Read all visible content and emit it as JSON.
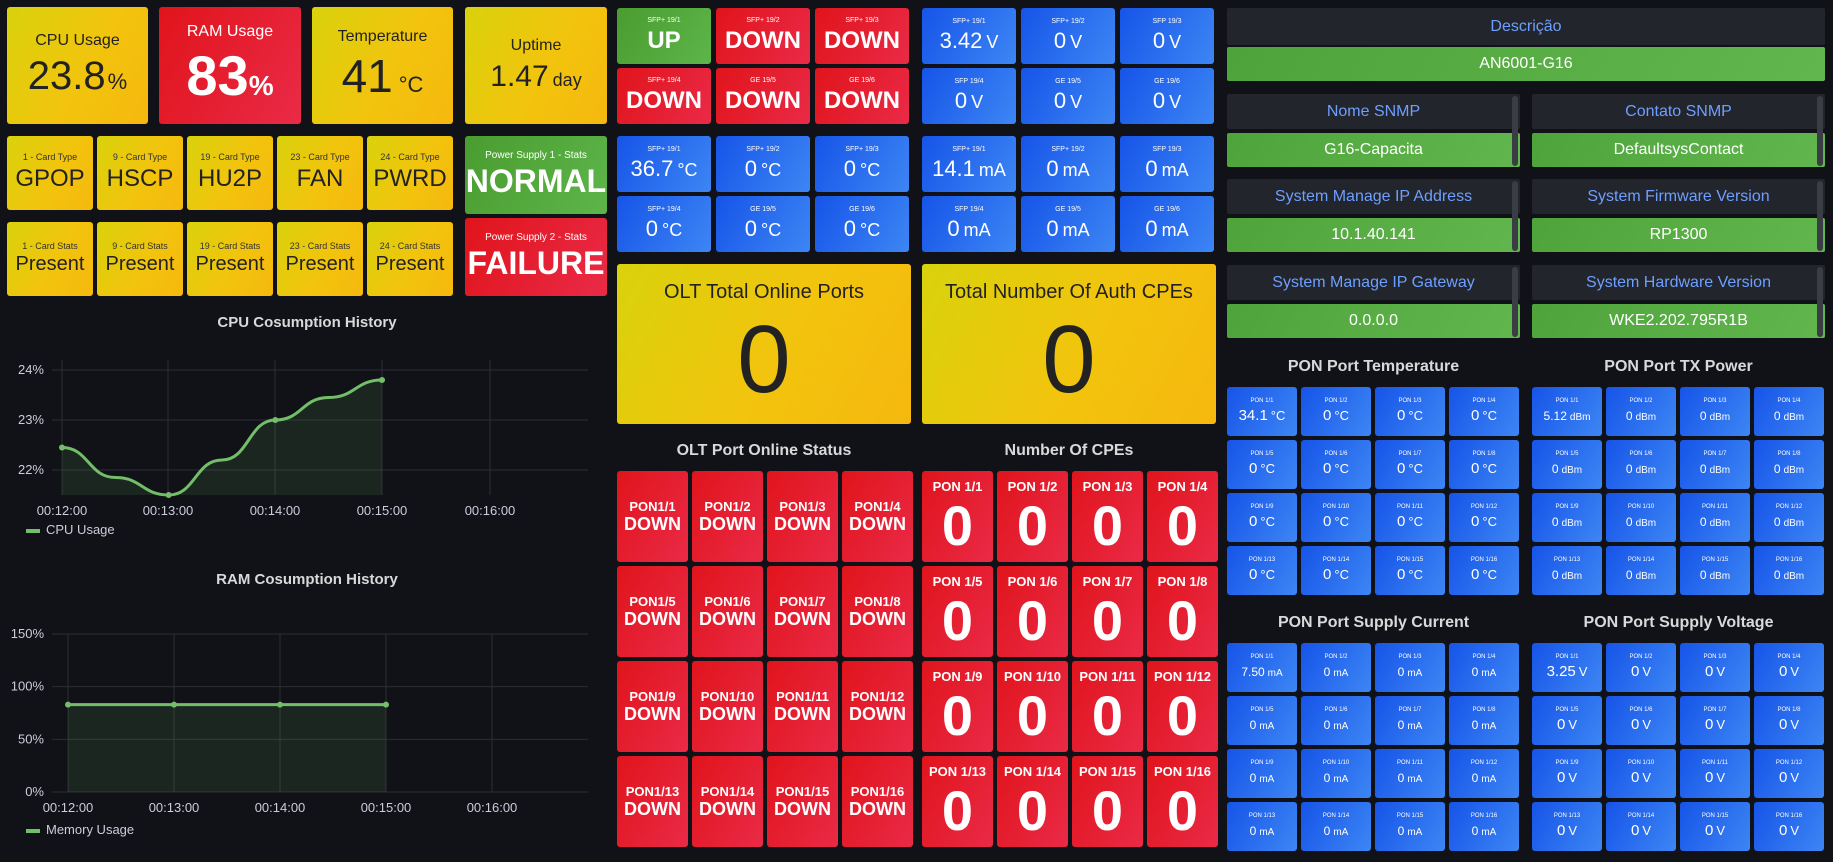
{
  "stats": {
    "cpu": {
      "title": "CPU Usage",
      "value": "23.8",
      "unit": "%"
    },
    "ram": {
      "title": "RAM Usage",
      "value": "83",
      "unit": "%"
    },
    "temp": {
      "title": "Temperature",
      "value": "41",
      "unit": "°C"
    },
    "uptime": {
      "title": "Uptime",
      "value": "1.47",
      "unit": "day"
    }
  },
  "card_types": [
    {
      "title": "1 - Card Type",
      "value": "GPOP"
    },
    {
      "title": "9 - Card Type",
      "value": "HSCP"
    },
    {
      "title": "19 - Card Type",
      "value": "HU2P"
    },
    {
      "title": "23 - Card Type",
      "value": "FAN"
    },
    {
      "title": "24 - Card Type",
      "value": "PWRD"
    }
  ],
  "card_stats": [
    {
      "title": "1 - Card Stats",
      "value": "Present"
    },
    {
      "title": "9 - Card Stats",
      "value": "Present"
    },
    {
      "title": "19 - Card Stats",
      "value": "Present"
    },
    {
      "title": "23 - Card Stats",
      "value": "Present"
    },
    {
      "title": "24 - Card Stats",
      "value": "Present"
    }
  ],
  "psu": [
    {
      "title": "Power Supply 1 - Stats",
      "value": "NORMAL"
    },
    {
      "title": "Power Supply 2 - Stats",
      "value": "FAILURE"
    }
  ],
  "sfp_status": [
    {
      "title": "SFP+ 19/1",
      "value": "UP",
      "state": "g"
    },
    {
      "title": "SFP+ 19/2",
      "value": "DOWN",
      "state": "r"
    },
    {
      "title": "SFP+ 19/3",
      "value": "DOWN",
      "state": "r"
    },
    {
      "title": "SFP+ 19/4",
      "value": "DOWN",
      "state": "r"
    },
    {
      "title": "GE 19/5",
      "value": "DOWN",
      "state": "r"
    },
    {
      "title": "GE 19/6",
      "value": "DOWN",
      "state": "r"
    }
  ],
  "sfp_voltage": [
    {
      "title": "SFP+ 19/1",
      "value": "3.42",
      "unit": "V"
    },
    {
      "title": "SFP+ 19/2",
      "value": "0",
      "unit": "V"
    },
    {
      "title": "SFP 19/3",
      "value": "0",
      "unit": "V"
    },
    {
      "title": "SFP 19/4",
      "value": "0",
      "unit": "V"
    },
    {
      "title": "GE 19/5",
      "value": "0",
      "unit": "V"
    },
    {
      "title": "GE 19/6",
      "value": "0",
      "unit": "V"
    }
  ],
  "sfp_temp": [
    {
      "title": "SFP+ 19/1",
      "value": "36.7",
      "unit": "°C"
    },
    {
      "title": "SFP+ 19/2",
      "value": "0",
      "unit": "°C"
    },
    {
      "title": "SFP+ 19/3",
      "value": "0",
      "unit": "°C"
    },
    {
      "title": "SFP+ 19/4",
      "value": "0",
      "unit": "°C"
    },
    {
      "title": "GE 19/5",
      "value": "0",
      "unit": "°C"
    },
    {
      "title": "GE 19/6",
      "value": "0",
      "unit": "°C"
    }
  ],
  "sfp_current": [
    {
      "title": "SFP+ 19/1",
      "value": "14.1",
      "unit": "mA"
    },
    {
      "title": "SFP+ 19/2",
      "value": "0",
      "unit": "mA"
    },
    {
      "title": "SFP 19/3",
      "value": "0",
      "unit": "mA"
    },
    {
      "title": "SFP 19/4",
      "value": "0",
      "unit": "mA"
    },
    {
      "title": "GE 19/5",
      "value": "0",
      "unit": "mA"
    },
    {
      "title": "GE 19/6",
      "value": "0",
      "unit": "mA"
    }
  ],
  "olt_total": {
    "title": "OLT Total Online Ports",
    "value": "0"
  },
  "auth_cpes": {
    "title": "Total Number Of Auth CPEs",
    "value": "0"
  },
  "olt_port_status": {
    "title": "OLT Port Online Status",
    "ports": [
      {
        "name": "PON1/1",
        "status": "DOWN"
      },
      {
        "name": "PON1/2",
        "status": "DOWN"
      },
      {
        "name": "PON1/3",
        "status": "DOWN"
      },
      {
        "name": "PON1/4",
        "status": "DOWN"
      },
      {
        "name": "PON1/5",
        "status": "DOWN"
      },
      {
        "name": "PON1/6",
        "status": "DOWN"
      },
      {
        "name": "PON1/7",
        "status": "DOWN"
      },
      {
        "name": "PON1/8",
        "status": "DOWN"
      },
      {
        "name": "PON1/9",
        "status": "DOWN"
      },
      {
        "name": "PON1/10",
        "status": "DOWN"
      },
      {
        "name": "PON1/11",
        "status": "DOWN"
      },
      {
        "name": "PON1/12",
        "status": "DOWN"
      },
      {
        "name": "PON1/13",
        "status": "DOWN"
      },
      {
        "name": "PON1/14",
        "status": "DOWN"
      },
      {
        "name": "PON1/15",
        "status": "DOWN"
      },
      {
        "name": "PON1/16",
        "status": "DOWN"
      }
    ]
  },
  "cpes": {
    "title": "Number Of CPEs",
    "ports": [
      {
        "name": "PON 1/1",
        "value": "0"
      },
      {
        "name": "PON 1/2",
        "value": "0"
      },
      {
        "name": "PON 1/3",
        "value": "0"
      },
      {
        "name": "PON 1/4",
        "value": "0"
      },
      {
        "name": "PON 1/5",
        "value": "0"
      },
      {
        "name": "PON 1/6",
        "value": "0"
      },
      {
        "name": "PON 1/7",
        "value": "0"
      },
      {
        "name": "PON 1/8",
        "value": "0"
      },
      {
        "name": "PON 1/9",
        "value": "0"
      },
      {
        "name": "PON 1/10",
        "value": "0"
      },
      {
        "name": "PON 1/11",
        "value": "0"
      },
      {
        "name": "PON 1/12",
        "value": "0"
      },
      {
        "name": "PON 1/13",
        "value": "0"
      },
      {
        "name": "PON 1/14",
        "value": "0"
      },
      {
        "name": "PON 1/15",
        "value": "0"
      },
      {
        "name": "PON 1/16",
        "value": "0"
      }
    ]
  },
  "info": {
    "descricao": {
      "label": "Descrição",
      "value": "AN6001-G16"
    },
    "snmp_name": {
      "label": "Nome SNMP",
      "value": "G16-Capacita"
    },
    "snmp_contact": {
      "label": "Contato SNMP",
      "value": "DefaultsysContact"
    },
    "mgmt_ip": {
      "label": "System Manage IP Address",
      "value": "10.1.40.141"
    },
    "firmware": {
      "label": "System Firmware Version",
      "value": "RP1300"
    },
    "gateway": {
      "label": "System Manage IP Gateway",
      "value": "0.0.0.0"
    },
    "hardware": {
      "label": "System Hardware Version",
      "value": "WKE2.202.795R1B"
    }
  },
  "pon_temp": {
    "title": "PON Port Temperature",
    "unit": "°C",
    "values": [
      "34.1",
      "0",
      "0",
      "0",
      "0",
      "0",
      "0",
      "0",
      "0",
      "0",
      "0",
      "0",
      "0",
      "0",
      "0",
      "0"
    ]
  },
  "pon_tx": {
    "title": "PON Port TX Power",
    "unit": "dBm",
    "values": [
      "5.12",
      "0",
      "0",
      "0",
      "0",
      "0",
      "0",
      "0",
      "0",
      "0",
      "0",
      "0",
      "0",
      "0",
      "0",
      "0"
    ]
  },
  "pon_current": {
    "title": "PON Port Supply Current",
    "unit": "mA",
    "values": [
      "7.50",
      "0",
      "0",
      "0",
      "0",
      "0",
      "0",
      "0",
      "0",
      "0",
      "0",
      "0",
      "0",
      "0",
      "0",
      "0"
    ]
  },
  "pon_voltage": {
    "title": "PON Port Supply Voltage",
    "unit": "V",
    "values": [
      "3.25",
      "0",
      "0",
      "0",
      "0",
      "0",
      "0",
      "0",
      "0",
      "0",
      "0",
      "0",
      "0",
      "0",
      "0",
      "0"
    ]
  },
  "pon_labels": [
    "PON 1/1",
    "PON 1/2",
    "PON 1/3",
    "PON 1/4",
    "PON 1/5",
    "PON 1/6",
    "PON 1/7",
    "PON 1/8",
    "PON 1/9",
    "PON 1/10",
    "PON 1/11",
    "PON 1/12",
    "PON 1/13",
    "PON 1/14",
    "PON 1/15",
    "PON 1/16"
  ],
  "chart_data": [
    {
      "type": "line",
      "title": "CPU Cosumption History",
      "series": [
        {
          "name": "CPU Usage",
          "x": [
            "00:12:00",
            "00:12:30",
            "00:13:00",
            "00:13:30",
            "00:14:00",
            "00:14:30",
            "00:15:00"
          ],
          "values": [
            22.45,
            21.85,
            21.5,
            22.2,
            23.0,
            23.45,
            23.8
          ]
        }
      ],
      "xticks": [
        "00:12:00",
        "00:13:00",
        "00:14:00",
        "00:15:00",
        "00:16:00"
      ],
      "yticks": [
        "22%",
        "23%",
        "24%"
      ],
      "ylim": [
        21.5,
        24.2
      ],
      "color": "#73bf69"
    },
    {
      "type": "line",
      "title": "RAM Cosumption History",
      "series": [
        {
          "name": "Memory Usage",
          "x": [
            "00:12:00",
            "00:13:00",
            "00:14:00",
            "00:15:00"
          ],
          "values": [
            83,
            83,
            83,
            83
          ]
        }
      ],
      "xticks": [
        "00:12:00",
        "00:13:00",
        "00:14:00",
        "00:15:00",
        "00:16:00"
      ],
      "yticks": [
        "0%",
        "50%",
        "100%",
        "150%"
      ],
      "ylim": [
        0,
        150
      ],
      "color": "#73bf69"
    }
  ]
}
